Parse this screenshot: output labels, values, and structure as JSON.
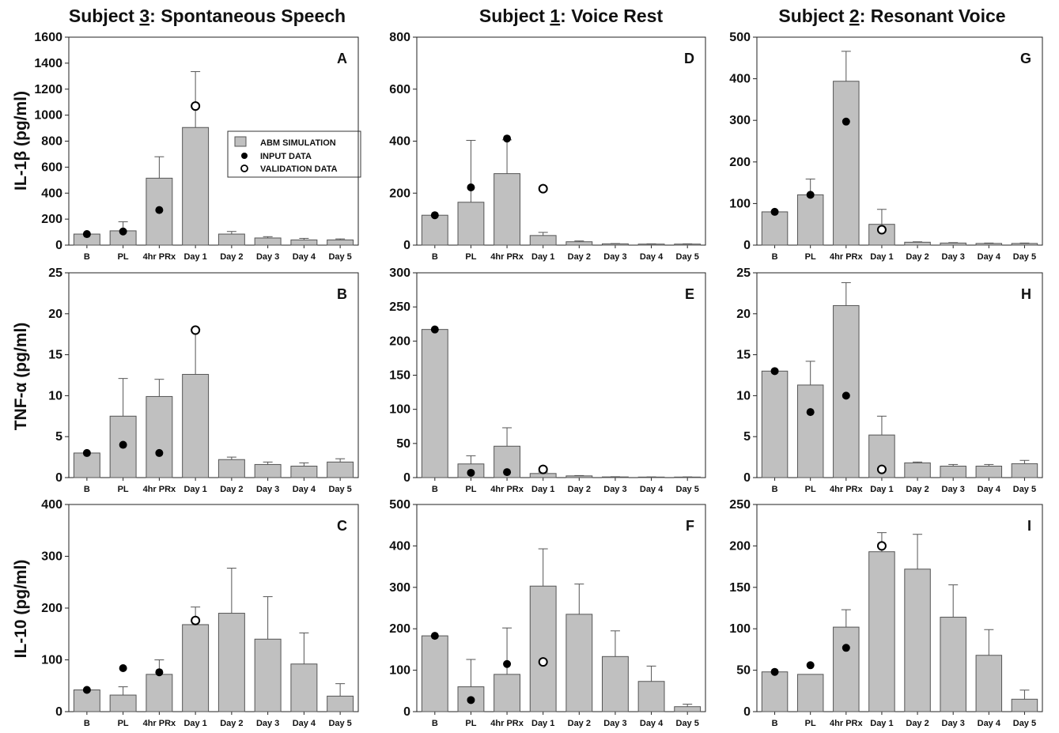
{
  "column_titles": [
    {
      "prefix": "Subject ",
      "num": "3",
      "suffix": ": Spontaneous Speech"
    },
    {
      "prefix": "Subject ",
      "num": "1",
      "suffix": ": Voice Rest"
    },
    {
      "prefix": "Subject ",
      "num": "2",
      "suffix": ": Resonant Voice"
    }
  ],
  "row_labels": [
    "IL-1β (pg/ml)",
    "TNF-α (pg/ml)",
    "IL-10 (pg/ml)"
  ],
  "legend": {
    "bar_label": "ABM SIMULATION",
    "input_label": "INPUT DATA",
    "validation_label": "VALIDATION DATA"
  },
  "colors": {
    "bar_fill": "#c0c0c0",
    "bar_stroke": "#555555",
    "axis": "#222222",
    "dot": "#000000"
  },
  "chart_data": [
    {
      "panel": "A",
      "type": "bar",
      "row": 0,
      "col": 0,
      "categories": [
        "B",
        "PL",
        "4hr PRx",
        "Day 1",
        "Day 2",
        "Day 3",
        "Day 4",
        "Day 5"
      ],
      "ylim": [
        0,
        1600
      ],
      "yticks": [
        0,
        200,
        400,
        600,
        800,
        1000,
        1200,
        1400,
        1600
      ],
      "values": [
        85,
        110,
        515,
        905,
        85,
        55,
        40,
        40
      ],
      "errors": [
        0,
        70,
        165,
        430,
        20,
        10,
        12,
        8
      ],
      "input": [
        {
          "cat": 0,
          "y": 85
        },
        {
          "cat": 1,
          "y": 105
        },
        {
          "cat": 2,
          "y": 270
        }
      ],
      "validation": [
        {
          "cat": 3,
          "y": 1070
        }
      ]
    },
    {
      "panel": "B",
      "type": "bar",
      "row": 1,
      "col": 0,
      "categories": [
        "B",
        "PL",
        "4hr PRx",
        "Day 1",
        "Day 2",
        "Day 3",
        "Day 4",
        "Day 5"
      ],
      "ylim": [
        0,
        25
      ],
      "yticks": [
        0,
        5,
        10,
        15,
        20,
        25
      ],
      "values": [
        3,
        7.5,
        9.9,
        12.6,
        2.2,
        1.6,
        1.4,
        1.9
      ],
      "errors": [
        0,
        4.6,
        2.1,
        5.5,
        0.3,
        0.3,
        0.4,
        0.4
      ],
      "input": [
        {
          "cat": 0,
          "y": 3
        },
        {
          "cat": 1,
          "y": 4
        },
        {
          "cat": 2,
          "y": 3
        }
      ],
      "validation": [
        {
          "cat": 3,
          "y": 18
        }
      ]
    },
    {
      "panel": "C",
      "type": "bar",
      "row": 2,
      "col": 0,
      "categories": [
        "B",
        "PL",
        "4hr PRx",
        "Day 1",
        "Day 2",
        "Day 3",
        "Day 4",
        "Day 5"
      ],
      "ylim": [
        0,
        400
      ],
      "yticks": [
        0,
        100,
        200,
        300,
        400
      ],
      "values": [
        42,
        32,
        72,
        168,
        190,
        140,
        92,
        30
      ],
      "errors": [
        0,
        16,
        28,
        34,
        87,
        82,
        60,
        24
      ],
      "input": [
        {
          "cat": 0,
          "y": 42
        },
        {
          "cat": 1,
          "y": 84
        },
        {
          "cat": 2,
          "y": 76
        }
      ],
      "validation": [
        {
          "cat": 3,
          "y": 176
        }
      ]
    },
    {
      "panel": "D",
      "type": "bar",
      "row": 0,
      "col": 1,
      "categories": [
        "B",
        "PL",
        "4hr PRx",
        "Day 1",
        "Day 2",
        "Day 3",
        "Day 4",
        "Day 5"
      ],
      "ylim": [
        0,
        800
      ],
      "yticks": [
        0,
        200,
        400,
        600,
        800
      ],
      "values": [
        115,
        165,
        275,
        37,
        13,
        5,
        4,
        4
      ],
      "errors": [
        0,
        238,
        130,
        12,
        3,
        1,
        1,
        1
      ],
      "input": [
        {
          "cat": 0,
          "y": 115
        },
        {
          "cat": 1,
          "y": 222
        },
        {
          "cat": 2,
          "y": 410
        }
      ],
      "validation": [
        {
          "cat": 3,
          "y": 217
        }
      ]
    },
    {
      "panel": "E",
      "type": "bar",
      "row": 1,
      "col": 1,
      "categories": [
        "B",
        "PL",
        "4hr PRx",
        "Day 1",
        "Day 2",
        "Day 3",
        "Day 4",
        "Day 5"
      ],
      "ylim": [
        0,
        300
      ],
      "yticks": [
        0,
        50,
        100,
        150,
        200,
        250,
        300
      ],
      "values": [
        217,
        20,
        46,
        6,
        2.5,
        1,
        0.8,
        0.8
      ],
      "errors": [
        0,
        12,
        27,
        2,
        0.5,
        0.3,
        0.2,
        0.2
      ],
      "input": [
        {
          "cat": 0,
          "y": 217
        },
        {
          "cat": 1,
          "y": 7
        },
        {
          "cat": 2,
          "y": 8
        }
      ],
      "validation": [
        {
          "cat": 3,
          "y": 12
        }
      ]
    },
    {
      "panel": "F",
      "type": "bar",
      "row": 2,
      "col": 1,
      "categories": [
        "B",
        "PL",
        "4hr PRx",
        "Day 1",
        "Day 2",
        "Day 3",
        "Day 4",
        "Day 5"
      ],
      "ylim": [
        0,
        500
      ],
      "yticks": [
        0,
        100,
        200,
        300,
        400,
        500
      ],
      "values": [
        183,
        60,
        90,
        303,
        235,
        133,
        73,
        12
      ],
      "errors": [
        0,
        66,
        112,
        90,
        73,
        62,
        37,
        6
      ],
      "input": [
        {
          "cat": 0,
          "y": 183
        },
        {
          "cat": 1,
          "y": 28
        },
        {
          "cat": 2,
          "y": 115
        }
      ],
      "validation": [
        {
          "cat": 3,
          "y": 120
        }
      ]
    },
    {
      "panel": "G",
      "type": "bar",
      "row": 0,
      "col": 2,
      "categories": [
        "B",
        "PL",
        "4hr PRx",
        "Day 1",
        "Day 2",
        "Day 3",
        "Day 4",
        "Day 5"
      ],
      "ylim": [
        0,
        500
      ],
      "yticks": [
        0,
        100,
        200,
        300,
        400,
        500
      ],
      "values": [
        80,
        121,
        394,
        50,
        7,
        5,
        4,
        4
      ],
      "errors": [
        0,
        38,
        72,
        36,
        1,
        1,
        1,
        1
      ],
      "input": [
        {
          "cat": 0,
          "y": 80
        },
        {
          "cat": 1,
          "y": 121
        },
        {
          "cat": 2,
          "y": 297
        }
      ],
      "validation": [
        {
          "cat": 3,
          "y": 37
        }
      ]
    },
    {
      "panel": "H",
      "type": "bar",
      "row": 1,
      "col": 2,
      "categories": [
        "B",
        "PL",
        "4hr PRx",
        "Day 1",
        "Day 2",
        "Day 3",
        "Day 4",
        "Day 5"
      ],
      "ylim": [
        0,
        25
      ],
      "yticks": [
        0,
        5,
        10,
        15,
        20,
        25
      ],
      "values": [
        13,
        11.3,
        21,
        5.2,
        1.8,
        1.4,
        1.4,
        1.7
      ],
      "errors": [
        0,
        2.9,
        2.8,
        2.3,
        0.1,
        0.2,
        0.2,
        0.4
      ],
      "input": [
        {
          "cat": 0,
          "y": 13
        },
        {
          "cat": 1,
          "y": 8
        },
        {
          "cat": 2,
          "y": 10
        }
      ],
      "validation": [
        {
          "cat": 3,
          "y": 1
        }
      ]
    },
    {
      "panel": "I",
      "type": "bar",
      "row": 2,
      "col": 2,
      "categories": [
        "B",
        "PL",
        "4hr PRx",
        "Day 1",
        "Day 2",
        "Day 3",
        "Day 4",
        "Day 5"
      ],
      "ylim": [
        0,
        250
      ],
      "yticks": [
        0,
        50,
        100,
        150,
        200,
        250
      ],
      "values": [
        48,
        45,
        102,
        193,
        172,
        114,
        68,
        15
      ],
      "errors": [
        0,
        0,
        21,
        23,
        42,
        39,
        31,
        11
      ],
      "input": [
        {
          "cat": 0,
          "y": 48
        },
        {
          "cat": 1,
          "y": 56
        },
        {
          "cat": 2,
          "y": 77
        }
      ],
      "validation": [
        {
          "cat": 3,
          "y": 200
        }
      ]
    }
  ]
}
